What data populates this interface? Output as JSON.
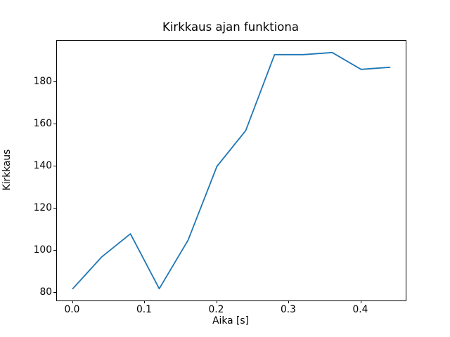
{
  "chart_data": {
    "type": "line",
    "title": "Kirkkaus ajan funktiona",
    "xlabel": "Aika [s]",
    "ylabel": "Kirkkaus",
    "x": [
      0.0,
      0.04,
      0.08,
      0.12,
      0.16,
      0.2,
      0.24,
      0.28,
      0.32,
      0.36,
      0.4,
      0.44
    ],
    "y": [
      82,
      97,
      108,
      82,
      105,
      140,
      157,
      193,
      193,
      194,
      186,
      187
    ],
    "series_name": "Kirkkaus",
    "xlim": [
      -0.022,
      0.462
    ],
    "ylim": [
      76.4,
      199.6
    ],
    "x_ticks": [
      0.0,
      0.1,
      0.2,
      0.3,
      0.4
    ],
    "x_tick_labels": [
      "0.0",
      "0.1",
      "0.2",
      "0.3",
      "0.4"
    ],
    "y_ticks": [
      80,
      100,
      120,
      140,
      160,
      180
    ],
    "y_tick_labels": [
      "80",
      "100",
      "120",
      "140",
      "160",
      "180"
    ],
    "grid": false,
    "legend": null,
    "line_color": "#1f77b4",
    "line_width": 1.8,
    "axes_color": "#000000",
    "background_color": "#ffffff"
  }
}
